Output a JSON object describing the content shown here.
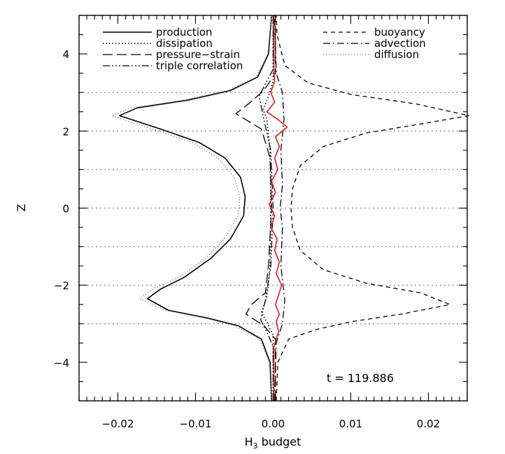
{
  "chart_data": {
    "type": "line",
    "xlabel": "H",
    "xlabel_sub": "3",
    "xlabel_rest": " budget",
    "ylabel": "Z",
    "xlim": [
      -0.025,
      0.025
    ],
    "ylim": [
      -5,
      5
    ],
    "xticks": [
      -0.02,
      -0.01,
      0.0,
      0.01,
      0.02
    ],
    "xtick_labels": [
      "−0.02",
      "−0.01",
      "0.00",
      "0.01",
      "0.02"
    ],
    "yticks": [
      -4,
      -2,
      0,
      2,
      4
    ],
    "ytick_labels": [
      "−4",
      "−2",
      "0",
      "2",
      "4"
    ],
    "gridlines_y": [
      -3,
      -2,
      -1,
      0,
      1,
      2,
      3
    ],
    "annotation": "t = 119.886",
    "legend": {
      "left": [
        "production",
        "dissipation",
        "pressure−strain",
        "triple correlation"
      ],
      "right": [
        "buoyancy",
        "advection",
        "diffusion"
      ]
    },
    "series": [
      {
        "name": "production",
        "style": "solid",
        "color": "#000000",
        "points": [
          [
            -0.0002,
            -5
          ],
          [
            -0.0004,
            -4
          ],
          [
            -0.0015,
            -3.4
          ],
          [
            -0.0045,
            -3.05
          ],
          [
            -0.0085,
            -2.85
          ],
          [
            -0.0135,
            -2.65
          ],
          [
            -0.0162,
            -2.35
          ],
          [
            -0.0145,
            -2.1
          ],
          [
            -0.0115,
            -1.8
          ],
          [
            -0.008,
            -1.3
          ],
          [
            -0.0055,
            -0.8
          ],
          [
            -0.0038,
            -0.2
          ],
          [
            -0.0036,
            0.3
          ],
          [
            -0.0042,
            0.8
          ],
          [
            -0.0062,
            1.3
          ],
          [
            -0.0095,
            1.7
          ],
          [
            -0.0145,
            2.05
          ],
          [
            -0.0198,
            2.4
          ],
          [
            -0.0175,
            2.6
          ],
          [
            -0.011,
            2.8
          ],
          [
            -0.0055,
            3.05
          ],
          [
            -0.002,
            3.4
          ],
          [
            -0.0006,
            4
          ],
          [
            -0.0002,
            5
          ]
        ]
      },
      {
        "name": "dissipation",
        "style": "dotted",
        "color": "#000000",
        "points": [
          [
            0,
            -5
          ],
          [
            0,
            -3.3
          ],
          [
            -0.0007,
            -3.0
          ],
          [
            -0.0015,
            -2.7
          ],
          [
            -0.0008,
            -2.3
          ],
          [
            -0.0004,
            -1.5
          ],
          [
            -0.0003,
            0
          ],
          [
            -0.0004,
            1.5
          ],
          [
            -0.0008,
            2.3
          ],
          [
            -0.0013,
            2.55
          ],
          [
            -0.0006,
            2.9
          ],
          [
            0,
            3.3
          ],
          [
            0,
            5
          ]
        ]
      },
      {
        "name": "pressure−strain",
        "style": "long-dash",
        "color": "#000000",
        "points": [
          [
            0.0003,
            -5
          ],
          [
            0.0003,
            -3.4
          ],
          [
            -0.0012,
            -3.05
          ],
          [
            -0.0035,
            -2.75
          ],
          [
            -0.0028,
            -2.5
          ],
          [
            -0.001,
            -2.2
          ],
          [
            -0.0006,
            -1.5
          ],
          [
            -0.0002,
            0
          ],
          [
            -0.0004,
            1.3
          ],
          [
            -0.0015,
            2.05
          ],
          [
            -0.0048,
            2.45
          ],
          [
            -0.0032,
            2.7
          ],
          [
            -0.0012,
            3.05
          ],
          [
            0.0003,
            3.5
          ],
          [
            0.0003,
            5
          ]
        ]
      },
      {
        "name": "triple correlation",
        "style": "dash-dot-dot",
        "color": "#000000",
        "points": [
          [
            0,
            -5
          ],
          [
            0,
            -3.6
          ],
          [
            -0.0006,
            -3.3
          ],
          [
            -0.0016,
            -2.9
          ],
          [
            -0.001,
            -2.4
          ],
          [
            -0.0003,
            -1.5
          ],
          [
            0,
            0
          ],
          [
            -0.0003,
            1.5
          ],
          [
            -0.0012,
            2.3
          ],
          [
            -0.0018,
            2.9
          ],
          [
            -0.0008,
            3.3
          ],
          [
            0,
            3.6
          ],
          [
            0,
            5
          ]
        ]
      },
      {
        "name": "buoyancy",
        "style": "short-dash",
        "color": "#000000",
        "points": [
          [
            0.0004,
            -5
          ],
          [
            0.0006,
            -4
          ],
          [
            0.002,
            -3.4
          ],
          [
            0.0055,
            -3.15
          ],
          [
            0.01,
            -2.95
          ],
          [
            0.0165,
            -2.75
          ],
          [
            0.0228,
            -2.5
          ],
          [
            0.019,
            -2.2
          ],
          [
            0.012,
            -1.95
          ],
          [
            0.0065,
            -1.6
          ],
          [
            0.0035,
            -1.1
          ],
          [
            0.0025,
            -0.5
          ],
          [
            0.0023,
            0
          ],
          [
            0.0025,
            0.5
          ],
          [
            0.0035,
            1.1
          ],
          [
            0.0065,
            1.6
          ],
          [
            0.012,
            1.95
          ],
          [
            0.0195,
            2.2
          ],
          [
            0.0252,
            2.4
          ],
          [
            0.0185,
            2.7
          ],
          [
            0.01,
            2.95
          ],
          [
            0.0045,
            3.25
          ],
          [
            0.0015,
            3.7
          ],
          [
            0.0005,
            4.5
          ],
          [
            0.0004,
            5
          ]
        ]
      },
      {
        "name": "advection",
        "style": "dash-dot",
        "color": "#000000",
        "points": [
          [
            0.0002,
            -5
          ],
          [
            0.0004,
            -3.5
          ],
          [
            0.0012,
            -3.0
          ],
          [
            0.0015,
            -2.4
          ],
          [
            0.001,
            -1.5
          ],
          [
            0.0012,
            -0.5
          ],
          [
            0.0009,
            0
          ],
          [
            0.0012,
            0.6
          ],
          [
            0.001,
            1.5
          ],
          [
            0.0014,
            2.3
          ],
          [
            0.0012,
            3.0
          ],
          [
            0.0004,
            3.5
          ],
          [
            0.0002,
            5
          ]
        ]
      },
      {
        "name": "diffusion",
        "style": "grey-dotted",
        "color": "#8c8c8c",
        "points": [
          [
            -0.0002,
            -5
          ],
          [
            -0.0005,
            -4
          ],
          [
            -0.0017,
            -3.4
          ],
          [
            -0.005,
            -3.05
          ],
          [
            -0.009,
            -2.85
          ],
          [
            -0.014,
            -2.65
          ],
          [
            -0.0172,
            -2.35
          ],
          [
            -0.0155,
            -2.1
          ],
          [
            -0.0122,
            -1.8
          ],
          [
            -0.0087,
            -1.3
          ],
          [
            -0.0063,
            -0.8
          ],
          [
            -0.0045,
            -0.2
          ],
          [
            -0.0043,
            0.3
          ],
          [
            -0.005,
            0.8
          ],
          [
            -0.0071,
            1.3
          ],
          [
            -0.0104,
            1.7
          ],
          [
            -0.0155,
            2.05
          ],
          [
            -0.0208,
            2.4
          ],
          [
            -0.0183,
            2.6
          ],
          [
            -0.0116,
            2.8
          ],
          [
            -0.0059,
            3.05
          ],
          [
            -0.0022,
            3.4
          ],
          [
            -0.0007,
            4
          ],
          [
            -0.0002,
            5
          ]
        ]
      },
      {
        "name": "",
        "style": "solid",
        "color": "#e41a1c",
        "points": [
          [
            0.0001,
            -5
          ],
          [
            0.0001,
            -3.6
          ],
          [
            0.0007,
            -3.2
          ],
          [
            0.0004,
            -2.95
          ],
          [
            0.0008,
            -2.75
          ],
          [
            0.0003,
            -2.5
          ],
          [
            0.0007,
            -2.25
          ],
          [
            0.0011,
            -2.0
          ],
          [
            0.0004,
            -1.7
          ],
          [
            0.0008,
            -1.4
          ],
          [
            0.0002,
            -1.1
          ],
          [
            0.0005,
            -0.8
          ],
          [
            -0.0003,
            -0.5
          ],
          [
            0.0002,
            -0.2
          ],
          [
            -0.0005,
            0.1
          ],
          [
            0.0003,
            0.4
          ],
          [
            -0.0002,
            0.7
          ],
          [
            0.0006,
            1.0
          ],
          [
            0.0002,
            1.3
          ],
          [
            0.0008,
            1.6
          ],
          [
            0.0003,
            1.85
          ],
          [
            0.0018,
            2.1
          ],
          [
            0.0006,
            2.3
          ],
          [
            -0.0008,
            2.5
          ],
          [
            0.0002,
            2.75
          ],
          [
            -0.0003,
            3.0
          ],
          [
            0.0002,
            3.3
          ],
          [
            0.0001,
            3.6
          ],
          [
            0.0001,
            5
          ]
        ]
      }
    ]
  }
}
